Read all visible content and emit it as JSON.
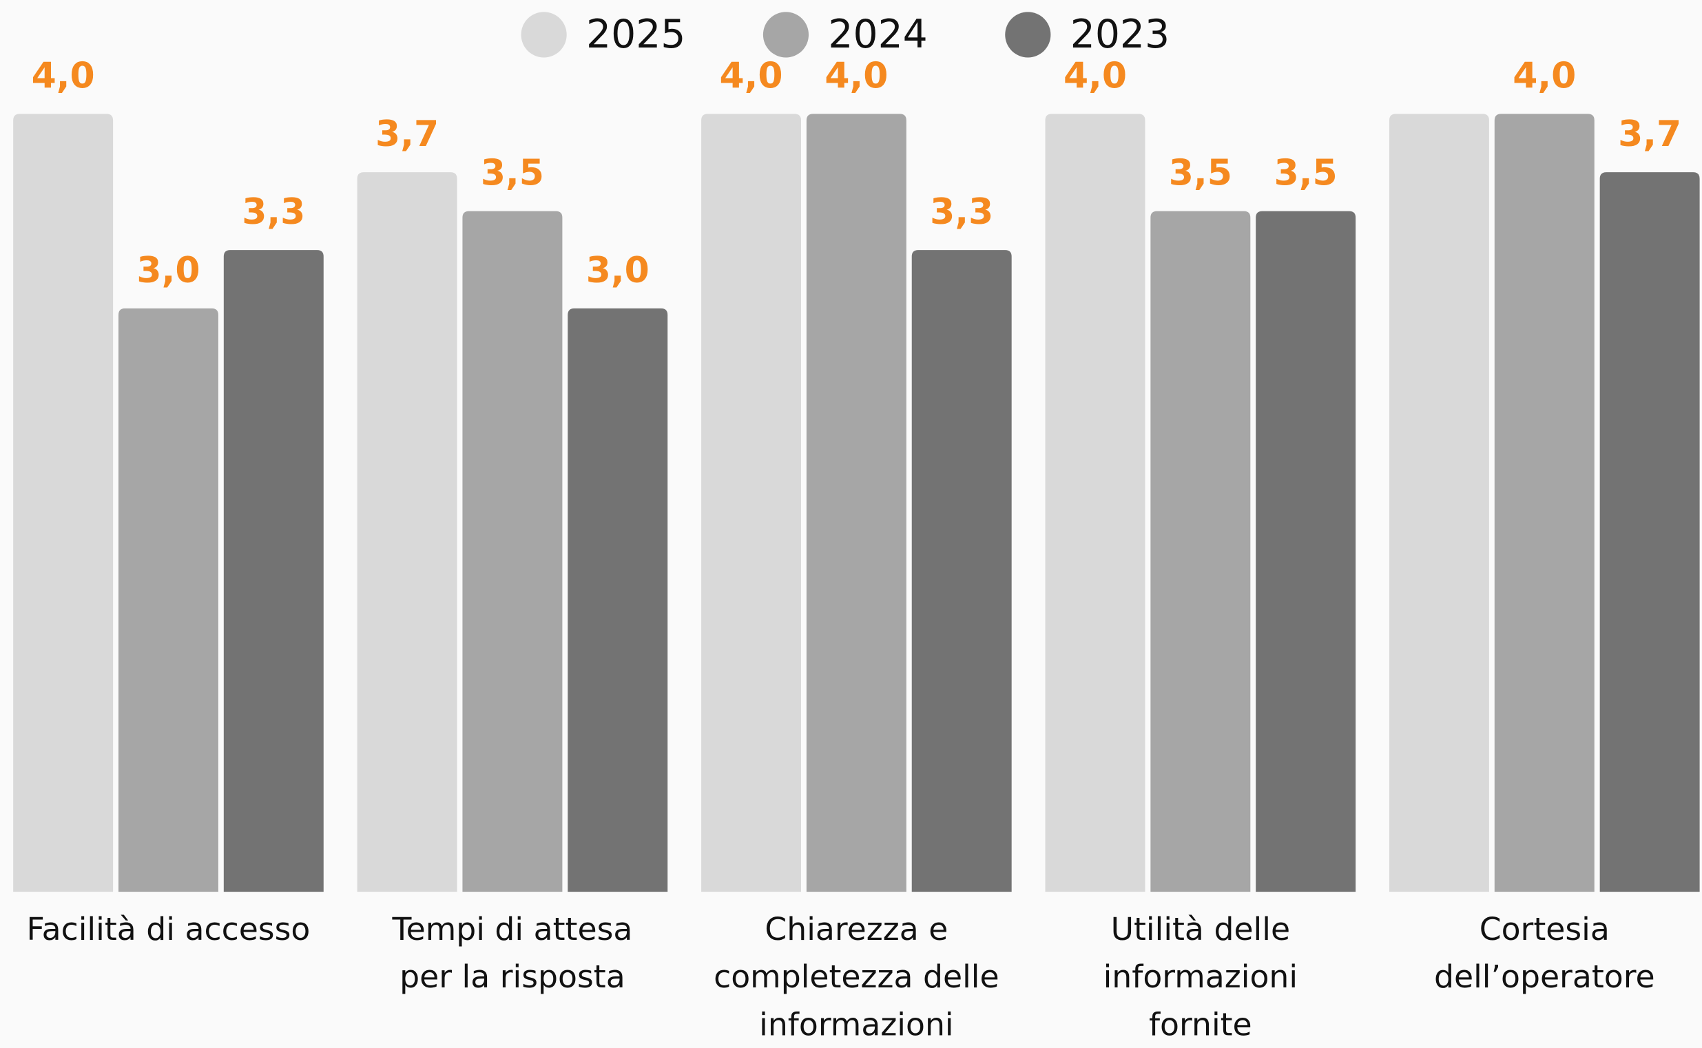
{
  "chart_data": {
    "type": "bar",
    "categories": [
      "Facilità di accesso",
      "Tempi di attesa\nper la risposta",
      "Chiarezza e\ncompletezza delle\ninformazioni",
      "Utilità delle\ninformazioni\nfornite",
      "Cortesia\ndell’operatore"
    ],
    "series": [
      {
        "name": "2025",
        "color": "#d9d9d9",
        "values": [
          4.0,
          3.7,
          4.0,
          4.0,
          4.0
        ],
        "value_labels": [
          "4,0",
          "3,7",
          "4,0",
          "4,0",
          null
        ]
      },
      {
        "name": "2024",
        "color": "#a6a6a6",
        "values": [
          3.0,
          3.5,
          4.0,
          3.5,
          4.0
        ],
        "value_labels": [
          "3,0",
          "3,5",
          "4,0",
          "3,5",
          "4,0"
        ]
      },
      {
        "name": "2023",
        "color": "#737373",
        "values": [
          3.3,
          3.0,
          3.3,
          3.5,
          3.7
        ],
        "value_labels": [
          "3,3",
          "3,0",
          "3,3",
          "3,5",
          "3,7"
        ]
      }
    ],
    "ylim": [
      0,
      4
    ],
    "label_color": "#f5891f",
    "legend": "top"
  }
}
